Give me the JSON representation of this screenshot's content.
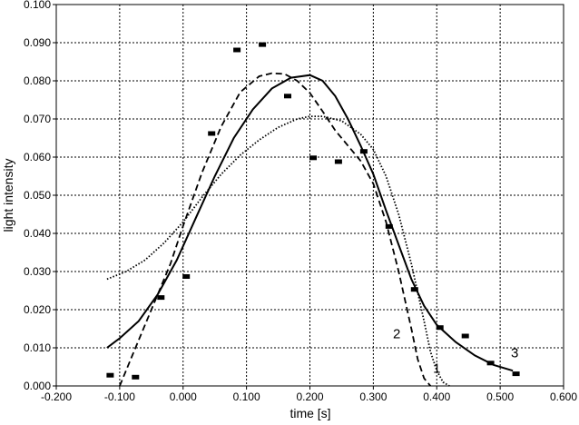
{
  "chart_data": {
    "type": "scatter",
    "xlabel": "time [s]",
    "ylabel": "light intensity",
    "xlim": [
      -0.2,
      0.6
    ],
    "ylim": [
      0,
      0.1
    ],
    "x_ticks": [
      "-0.200",
      "-0.100",
      "0.000",
      "0.100",
      "0.200",
      "0.300",
      "0.400",
      "0.500",
      "0.600"
    ],
    "y_ticks": [
      "0.000",
      "0.010",
      "0.020",
      "0.030",
      "0.040",
      "0.050",
      "0.060",
      "0.070",
      "0.080",
      "0.090",
      "0.100"
    ],
    "grid": true,
    "points": {
      "x": [
        -0.115,
        -0.075,
        -0.035,
        0.005,
        0.045,
        0.085,
        0.125,
        0.165,
        0.205,
        0.245,
        0.285,
        0.325,
        0.365,
        0.405,
        0.445,
        0.485,
        0.525
      ],
      "y": [
        0.0028,
        0.0023,
        0.0232,
        0.0287,
        0.0662,
        0.0881,
        0.0895,
        0.076,
        0.0598,
        0.0588,
        0.0615,
        0.0418,
        0.0253,
        0.0153,
        0.0131,
        0.006,
        0.0032
      ]
    },
    "series": [
      {
        "name": "1",
        "style": "dotted",
        "x": [
          -0.12,
          -0.09,
          -0.06,
          -0.03,
          0.0,
          0.03,
          0.06,
          0.09,
          0.12,
          0.15,
          0.18,
          0.2,
          0.22,
          0.25,
          0.28,
          0.3,
          0.32,
          0.34,
          0.36,
          0.38,
          0.39,
          0.4,
          0.41,
          0.42
        ],
        "y": [
          0.028,
          0.03,
          0.033,
          0.0375,
          0.043,
          0.0495,
          0.0555,
          0.0605,
          0.0645,
          0.0678,
          0.07,
          0.0707,
          0.0707,
          0.0695,
          0.066,
          0.062,
          0.055,
          0.045,
          0.032,
          0.017,
          0.009,
          0.004,
          0.001,
          0.0
        ]
      },
      {
        "name": "2",
        "style": "dashed",
        "x": [
          -0.1,
          -0.08,
          -0.05,
          -0.02,
          0.0,
          0.03,
          0.06,
          0.09,
          0.12,
          0.14,
          0.16,
          0.18,
          0.2,
          0.22,
          0.24,
          0.26,
          0.28,
          0.3,
          0.32,
          0.34,
          0.36,
          0.37,
          0.38,
          0.39
        ],
        "y": [
          0.0,
          0.008,
          0.02,
          0.032,
          0.042,
          0.056,
          0.068,
          0.077,
          0.0812,
          0.082,
          0.0818,
          0.08,
          0.0768,
          0.072,
          0.067,
          0.063,
          0.059,
          0.053,
          0.043,
          0.03,
          0.015,
          0.007,
          0.002,
          0.0
        ]
      },
      {
        "name": "3",
        "style": "solid",
        "x": [
          -0.12,
          -0.1,
          -0.07,
          -0.04,
          -0.01,
          0.02,
          0.05,
          0.08,
          0.11,
          0.14,
          0.17,
          0.2,
          0.22,
          0.24,
          0.26,
          0.28,
          0.3,
          0.32,
          0.34,
          0.36,
          0.38,
          0.4,
          0.43,
          0.46,
          0.49,
          0.52
        ],
        "y": [
          0.01,
          0.0125,
          0.017,
          0.024,
          0.033,
          0.044,
          0.055,
          0.065,
          0.0725,
          0.078,
          0.0808,
          0.0815,
          0.08,
          0.076,
          0.07,
          0.063,
          0.0555,
          0.046,
          0.037,
          0.028,
          0.021,
          0.016,
          0.0115,
          0.008,
          0.0055,
          0.004
        ]
      }
    ]
  }
}
